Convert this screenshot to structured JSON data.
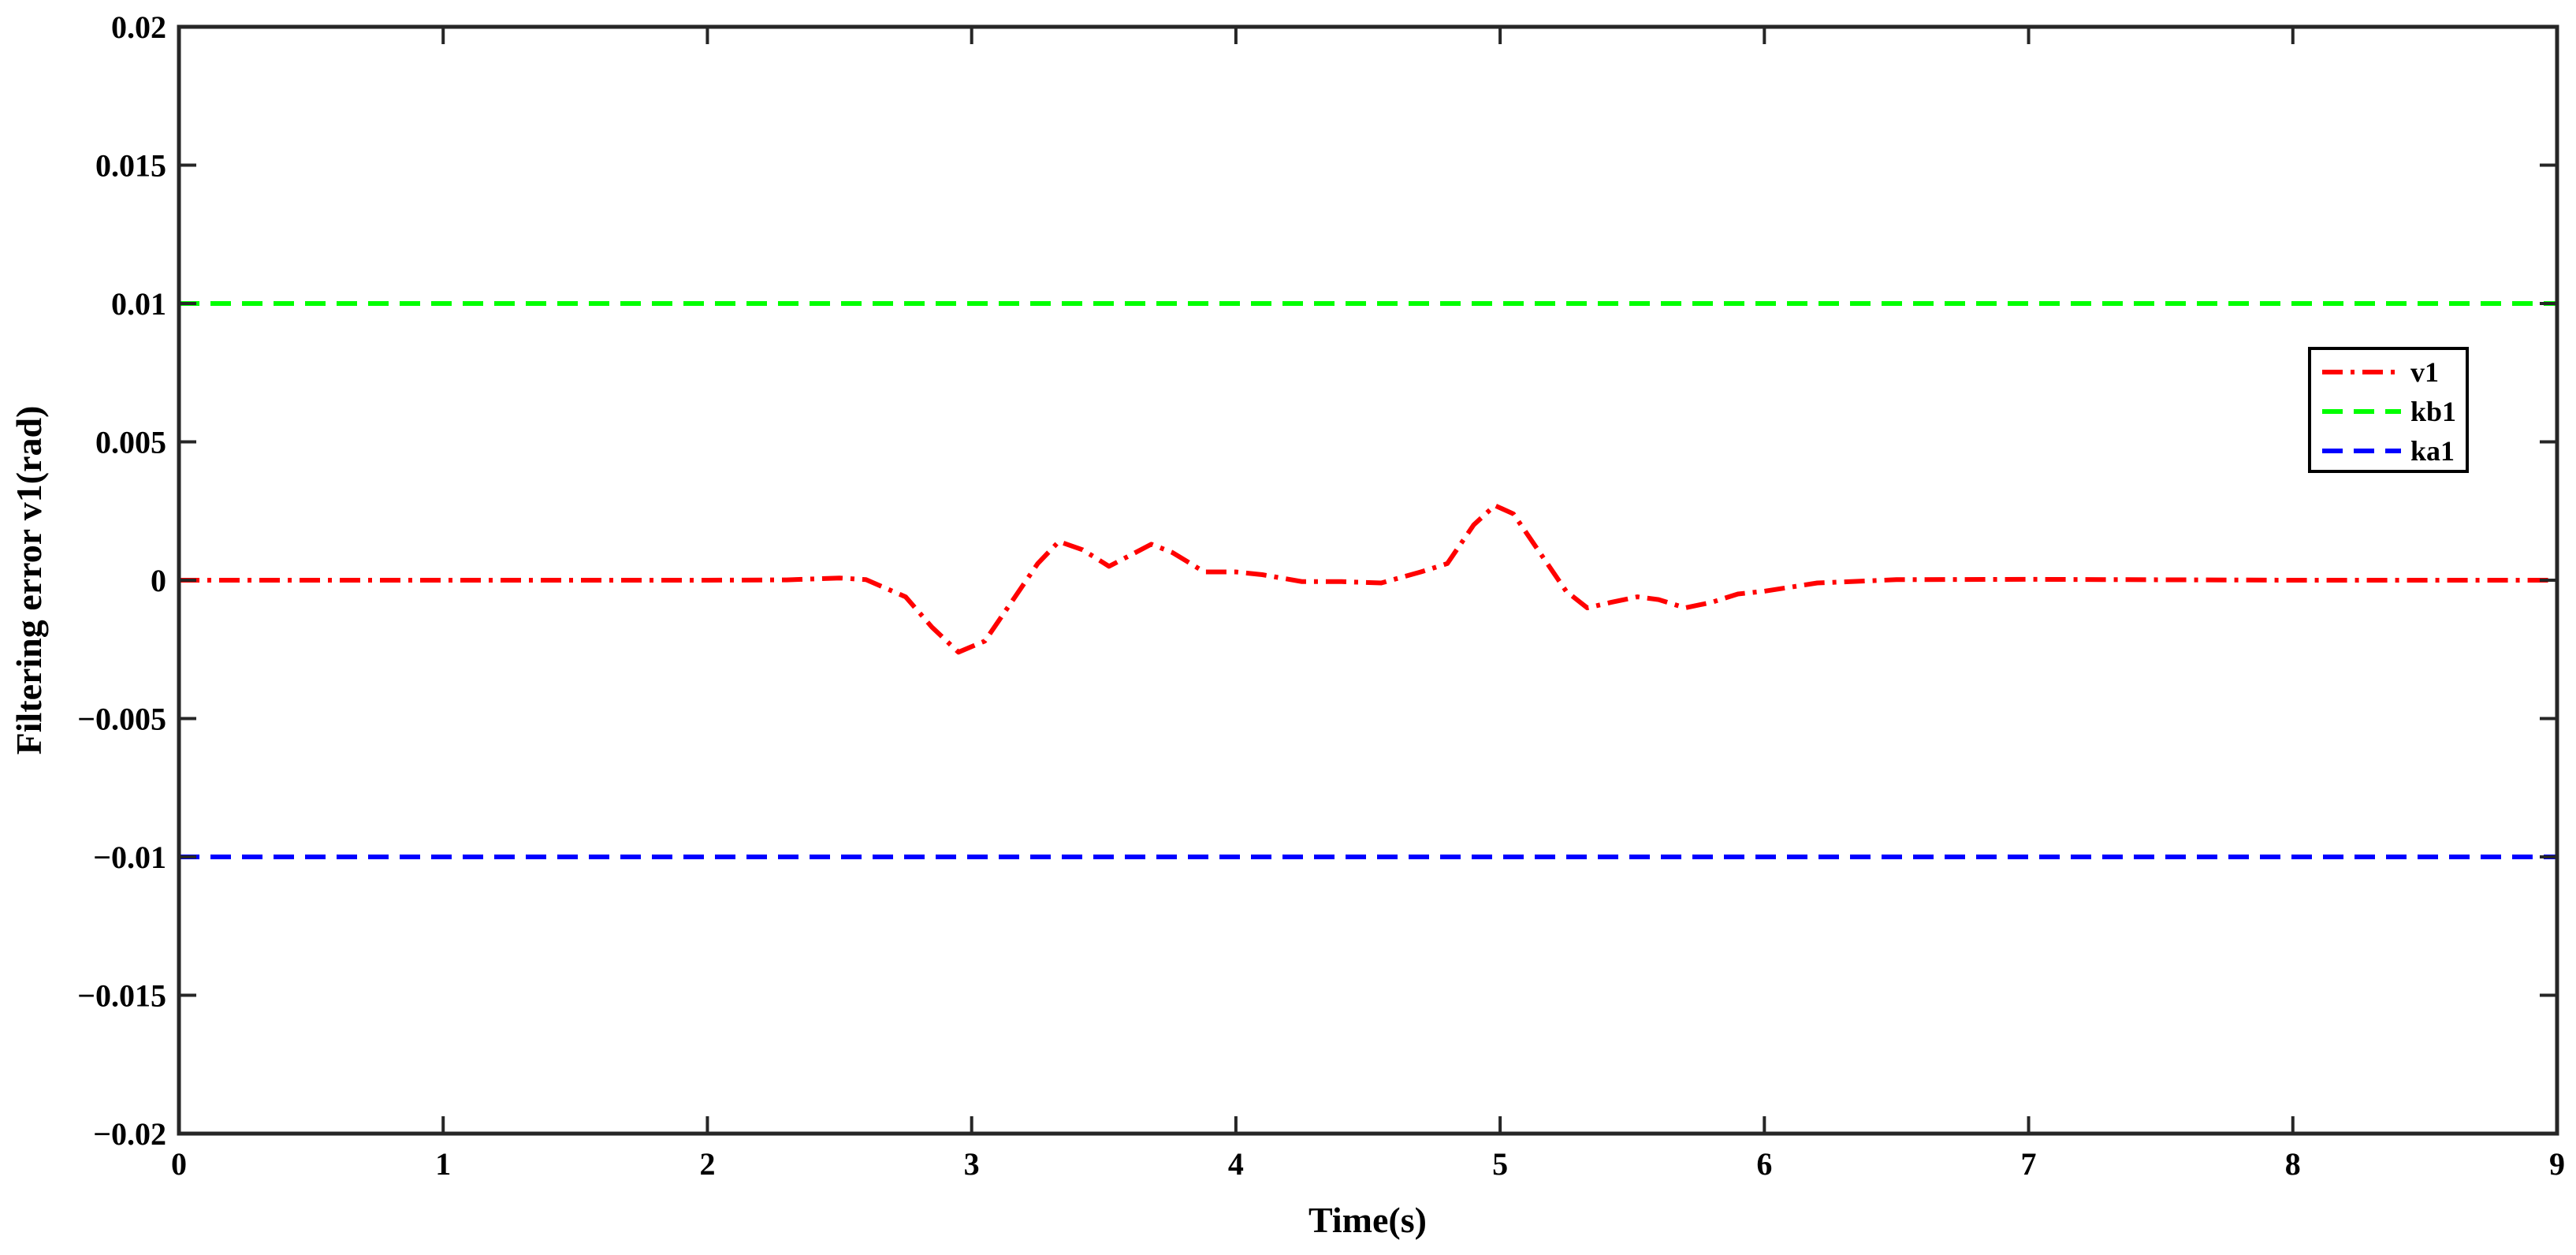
{
  "chart_data": {
    "type": "line",
    "xlabel": "Time(s)",
    "ylabel": "Filtering error v1(rad)",
    "xlim": [
      0,
      9
    ],
    "ylim": [
      -0.02,
      0.02
    ],
    "xticks": [
      "0",
      "1",
      "2",
      "3",
      "4",
      "5",
      "6",
      "7",
      "8",
      "9"
    ],
    "yticks": [
      "0.02",
      "0.015",
      "0.01",
      "0.005",
      "0",
      "−0.005",
      "−0.01",
      "−0.015",
      "−0.02"
    ],
    "ytick_values": [
      0.02,
      0.015,
      0.01,
      0.005,
      0,
      -0.005,
      -0.01,
      -0.015,
      -0.02
    ],
    "grid": false,
    "legend_position": "upper-right",
    "series": [
      {
        "name": "v1",
        "color": "#ff0000",
        "style": "dash-dot",
        "x": [
          0,
          1,
          2,
          2.3,
          2.5,
          2.6,
          2.75,
          2.85,
          2.95,
          3.05,
          3.15,
          3.25,
          3.33,
          3.42,
          3.52,
          3.6,
          3.68,
          3.76,
          3.88,
          4.0,
          4.1,
          4.25,
          4.4,
          4.55,
          4.7,
          4.8,
          4.9,
          4.98,
          5.05,
          5.15,
          5.25,
          5.33,
          5.42,
          5.52,
          5.6,
          5.7,
          5.8,
          5.9,
          6.0,
          6.2,
          6.5,
          7.0,
          8.0,
          9.0
        ],
        "y": [
          0,
          0,
          0,
          1e-05,
          8e-05,
          2e-05,
          -0.0006,
          -0.0017,
          -0.0026,
          -0.0022,
          -0.0008,
          0.0006,
          0.0014,
          0.0011,
          0.0005,
          0.0009,
          0.0013,
          0.001,
          0.0003,
          0.0003,
          0.0002,
          -5e-05,
          -5e-05,
          -0.0001,
          0.0003,
          0.0006,
          0.002,
          0.0027,
          0.0024,
          0.001,
          -0.0004,
          -0.001,
          -0.0008,
          -0.0006,
          -0.0007,
          -0.001,
          -0.0008,
          -0.0005,
          -0.0004,
          -0.0001,
          2e-05,
          3e-05,
          0,
          0
        ]
      },
      {
        "name": "kb1",
        "color": "#00ff00",
        "style": "dashed",
        "x": [
          0,
          9
        ],
        "y": [
          0.01,
          0.01
        ]
      },
      {
        "name": "ka1",
        "color": "#0000ff",
        "style": "dashed",
        "x": [
          0,
          9
        ],
        "y": [
          -0.01,
          -0.01
        ]
      }
    ]
  }
}
